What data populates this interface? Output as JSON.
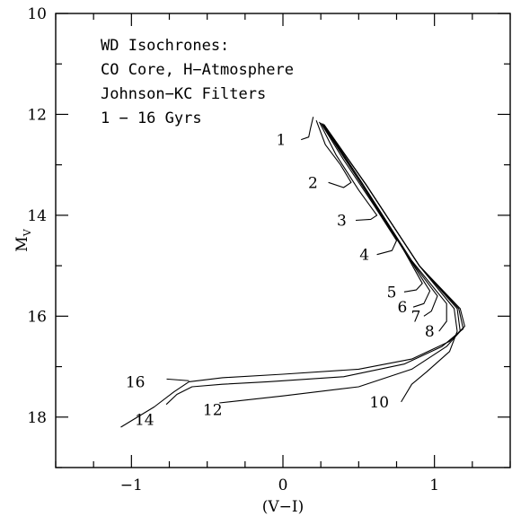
{
  "chart_data": {
    "type": "line",
    "title": "",
    "xlabel": "(V−I)",
    "ylabel": "M",
    "ylabel_sub": "V",
    "xlim": [
      -1.5,
      1.5
    ],
    "ylim": [
      19,
      10
    ],
    "y_inverted": true,
    "xticks_major": [
      -1,
      0,
      1
    ],
    "xtick_labels": [
      "−1",
      "0",
      "1"
    ],
    "xticks_minor": [
      -1.5,
      -1.25,
      -0.75,
      -0.5,
      -0.25,
      0.25,
      0.5,
      0.75,
      1.25,
      1.5
    ],
    "yticks_major": [
      10,
      12,
      14,
      16,
      18
    ],
    "ytick_labels": [
      "10",
      "12",
      "14",
      "16",
      "18"
    ],
    "yticks_minor": [
      11,
      13,
      15,
      17,
      19
    ],
    "annotation_lines": [
      "WD Isochrones:",
      "CO Core, H−Atmosphere",
      "Johnson−KC Filters",
      "1 − 16 Gyrs"
    ],
    "series": [
      {
        "label": "1",
        "points": [
          [
            0.2,
            12.05
          ],
          [
            0.18,
            12.3
          ],
          [
            0.17,
            12.45
          ],
          [
            0.12,
            12.5
          ]
        ],
        "label_at": [
          0.02,
          12.5
        ],
        "leader_end": [
          0.12,
          12.5
        ]
      },
      {
        "label": "2",
        "points": [
          [
            0.22,
            12.12
          ],
          [
            0.28,
            12.6
          ],
          [
            0.38,
            13.0
          ],
          [
            0.45,
            13.35
          ],
          [
            0.4,
            13.45
          ],
          [
            0.3,
            13.35
          ]
        ],
        "label_at": [
          0.23,
          13.35
        ],
        "leader_end": [
          0.3,
          13.35
        ]
      },
      {
        "label": "3",
        "points": [
          [
            0.24,
            12.15
          ],
          [
            0.35,
            12.8
          ],
          [
            0.5,
            13.5
          ],
          [
            0.62,
            14.0
          ],
          [
            0.58,
            14.08
          ],
          [
            0.48,
            14.1
          ]
        ],
        "label_at": [
          0.42,
          14.1
        ],
        "leader_end": [
          0.48,
          14.1
        ]
      },
      {
        "label": "4",
        "points": [
          [
            0.25,
            12.17
          ],
          [
            0.4,
            12.9
          ],
          [
            0.6,
            13.8
          ],
          [
            0.75,
            14.5
          ],
          [
            0.72,
            14.7
          ],
          [
            0.62,
            14.78
          ]
        ],
        "label_at": [
          0.57,
          14.78
        ],
        "leader_end": [
          0.62,
          14.78
        ]
      },
      {
        "label": "5",
        "points": [
          [
            0.26,
            12.18
          ],
          [
            0.5,
            13.3
          ],
          [
            0.78,
            14.6
          ],
          [
            0.92,
            15.35
          ],
          [
            0.88,
            15.48
          ],
          [
            0.8,
            15.52
          ]
        ],
        "label_at": [
          0.75,
          15.52
        ],
        "leader_end": [
          0.8,
          15.52
        ]
      },
      {
        "label": "6",
        "points": [
          [
            0.26,
            12.2
          ],
          [
            0.5,
            13.3
          ],
          [
            0.8,
            14.7
          ],
          [
            0.97,
            15.5
          ],
          [
            0.93,
            15.75
          ],
          [
            0.86,
            15.82
          ]
        ],
        "label_at": [
          0.82,
          15.82
        ],
        "leader_end": [
          0.86,
          15.82
        ]
      },
      {
        "label": "7",
        "points": [
          [
            0.27,
            12.2
          ],
          [
            0.52,
            13.35
          ],
          [
            0.82,
            14.8
          ],
          [
            1.02,
            15.6
          ],
          [
            0.98,
            15.9
          ],
          [
            0.93,
            16.0
          ]
        ],
        "label_at": [
          0.91,
          16.0
        ],
        "leader_end": [
          0.93,
          16.0
        ]
      },
      {
        "label": "8",
        "points": [
          [
            0.27,
            12.2
          ],
          [
            0.52,
            13.35
          ],
          [
            0.85,
            14.9
          ],
          [
            1.08,
            15.75
          ],
          [
            1.08,
            16.1
          ],
          [
            1.03,
            16.3
          ]
        ],
        "label_at": [
          1.0,
          16.3
        ],
        "leader_end": [
          1.03,
          16.3
        ]
      },
      {
        "label": "10",
        "points": [
          [
            0.27,
            12.2
          ],
          [
            0.55,
            13.4
          ],
          [
            0.9,
            15.0
          ],
          [
            1.13,
            15.85
          ],
          [
            1.15,
            16.3
          ],
          [
            1.1,
            16.7
          ],
          [
            0.95,
            17.1
          ],
          [
            0.85,
            17.35
          ],
          [
            0.78,
            17.7
          ]
        ],
        "label_at": [
          0.7,
          17.7
        ],
        "leader_end": [
          0.78,
          17.7
        ]
      },
      {
        "label": "12",
        "points": [
          [
            0.27,
            12.2
          ],
          [
            0.55,
            13.4
          ],
          [
            0.9,
            15.0
          ],
          [
            1.15,
            15.85
          ],
          [
            1.17,
            16.3
          ],
          [
            1.08,
            16.6
          ],
          [
            0.85,
            17.05
          ],
          [
            0.5,
            17.4
          ],
          [
            0.0,
            17.58
          ],
          [
            -0.42,
            17.72
          ]
        ],
        "label_at": [
          -0.4,
          17.85
        ],
        "leader_end": [
          -0.42,
          17.72
        ]
      },
      {
        "label": "14",
        "points": [
          [
            0.27,
            12.2
          ],
          [
            0.55,
            13.4
          ],
          [
            0.9,
            15.0
          ],
          [
            1.16,
            15.85
          ],
          [
            1.19,
            16.25
          ],
          [
            1.05,
            16.6
          ],
          [
            0.8,
            16.95
          ],
          [
            0.4,
            17.2
          ],
          [
            -0.1,
            17.3
          ],
          [
            -0.4,
            17.35
          ],
          [
            -0.6,
            17.4
          ],
          [
            -0.7,
            17.55
          ],
          [
            -0.77,
            17.75
          ]
        ],
        "label_at": [
          -0.85,
          18.05
        ],
        "leader_end": [
          -0.77,
          17.75
        ]
      },
      {
        "label": "16",
        "points": [
          [
            0.27,
            12.2
          ],
          [
            0.55,
            13.4
          ],
          [
            0.9,
            15.0
          ],
          [
            1.17,
            15.85
          ],
          [
            1.2,
            16.2
          ],
          [
            1.1,
            16.5
          ],
          [
            0.85,
            16.85
          ],
          [
            0.5,
            17.05
          ],
          [
            0.0,
            17.15
          ],
          [
            -0.4,
            17.22
          ],
          [
            -0.62,
            17.3
          ],
          [
            -0.72,
            17.5
          ],
          [
            -0.85,
            17.8
          ],
          [
            -1.07,
            18.2
          ]
        ],
        "label_at": [
          -0.91,
          17.3
        ],
        "leader_end": [
          -0.62,
          17.28
        ]
      }
    ]
  }
}
